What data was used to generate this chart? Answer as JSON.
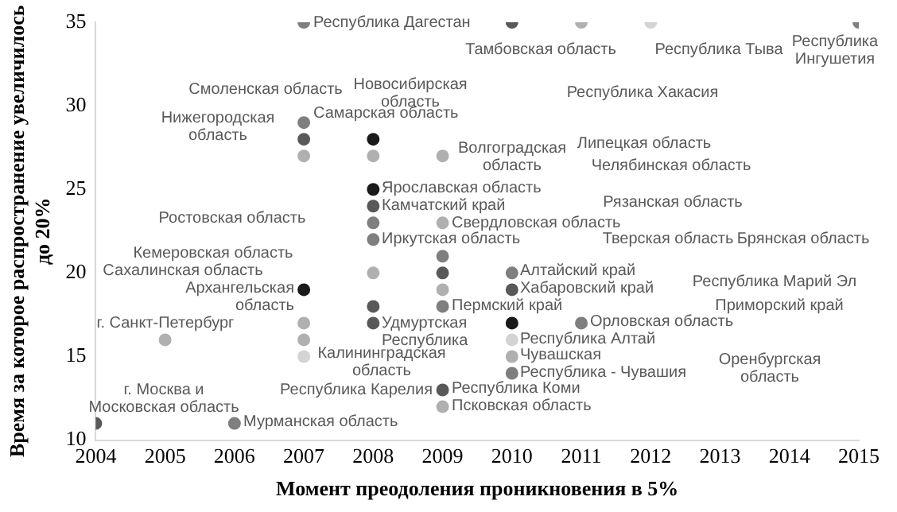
{
  "chart_data": {
    "type": "scatter",
    "xlabel": "Момент преодоления проникновения в 5%",
    "ylabel": "Время за которое распространение увеличилось\nдо 20%",
    "xlim": [
      2004,
      2015
    ],
    "xticks": [
      2004,
      2005,
      2006,
      2007,
      2008,
      2009,
      2010,
      2011,
      2012,
      2013,
      2014,
      2015
    ],
    "ylim": [
      10,
      35
    ],
    "yticks": [
      10,
      15,
      20,
      25,
      30,
      35
    ],
    "grid": false,
    "legend": false,
    "marker": "circle",
    "series": [
      {
        "x": [
          2004,
          2005,
          2006,
          2007,
          2007,
          2007,
          2007,
          2007,
          2007,
          2007,
          2007,
          2008,
          2008,
          2008,
          2008,
          2008,
          2008,
          2008,
          2008,
          2008,
          2009,
          2009,
          2009,
          2009,
          2009,
          2009,
          2009,
          2009,
          2010,
          2010,
          2010,
          2010,
          2010,
          2010,
          2010,
          2011,
          2011,
          2012,
          2015
        ],
        "values": [
          11,
          16,
          11,
          35,
          29,
          28,
          27,
          19,
          17,
          16,
          15,
          28,
          27,
          25,
          24,
          23,
          22,
          20,
          18,
          17,
          27,
          23,
          21,
          20,
          19,
          18,
          13,
          12,
          35,
          20,
          19,
          17,
          16,
          15,
          14,
          35,
          17,
          35,
          35
        ],
        "colors": [
          "#595959",
          "#b0b0b0",
          "#7f7f7f",
          "#7f7f7f",
          "#7f7f7f",
          "#595959",
          "#b0b0b0",
          "#1a1a1a",
          "#b0b0b0",
          "#b0b0b0",
          "#d4d4d4",
          "#1a1a1a",
          "#b0b0b0",
          "#1a1a1a",
          "#595959",
          "#7f7f7f",
          "#7f7f7f",
          "#b0b0b0",
          "#595959",
          "#595959",
          "#b0b0b0",
          "#b0b0b0",
          "#7f7f7f",
          "#595959",
          "#b0b0b0",
          "#7f7f7f",
          "#595959",
          "#b0b0b0",
          "#595959",
          "#7f7f7f",
          "#595959",
          "#1a1a1a",
          "#d4d4d4",
          "#b0b0b0",
          "#7f7f7f",
          "#b0b0b0",
          "#7f7f7f",
          "#d4d4d4",
          "#7f7f7f"
        ]
      }
    ],
    "annotations": [
      "Республика Дагестан",
      "Тамбовская область",
      "Республика Тыва",
      "Республика Ингушетия",
      "Смоленская область",
      "Новосибирская область",
      "Республика Хакасия",
      "Нижегородская область",
      "Самарская область",
      "Липецкая область",
      "Волгоградская область",
      "Челябинская область",
      "Ярославская область",
      "Камчатский край",
      "Рязанская область",
      "Ростовская область",
      "Свердловская область",
      "Иркутская область",
      "Кемеровская область",
      "Тверская область",
      "Брянская область",
      "Сахалинская область",
      "Архангельская область",
      "Алтайский край",
      "Хабаровский край",
      "Республика Марий Эл",
      "Пермский край",
      "Удмуртская Республика",
      "Орловская область",
      "Приморский край",
      "Республика Алтай",
      "г. Санкт-Петербург",
      "Калининградская область",
      "Чувашская",
      "Оренбургская область",
      "Республика - Чувашия",
      "Республика Карелия",
      "Республика Коми",
      "Псковская область",
      "г. Москва и Московская область",
      "Мурманская область"
    ]
  }
}
